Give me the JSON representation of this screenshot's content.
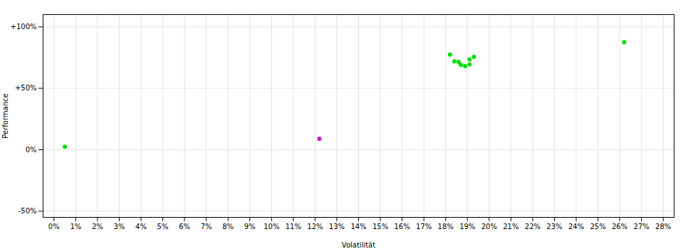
{
  "chart_data": {
    "type": "scatter",
    "xlabel": "Volatilität",
    "ylabel": "Performance",
    "xlim": [
      -0.005,
      0.285
    ],
    "ylim": [
      -0.55,
      1.1
    ],
    "xticks": [
      {
        "value": 0,
        "label": "0%"
      },
      {
        "value": 0.01,
        "label": "1%"
      },
      {
        "value": 0.02,
        "label": "2%"
      },
      {
        "value": 0.03,
        "label": "3%"
      },
      {
        "value": 0.04,
        "label": "4%"
      },
      {
        "value": 0.05,
        "label": "5%"
      },
      {
        "value": 0.06,
        "label": "6%"
      },
      {
        "value": 0.07,
        "label": "7%"
      },
      {
        "value": 0.08,
        "label": "8%"
      },
      {
        "value": 0.09,
        "label": "9%"
      },
      {
        "value": 0.1,
        "label": "10%"
      },
      {
        "value": 0.11,
        "label": "11%"
      },
      {
        "value": 0.12,
        "label": "12%"
      },
      {
        "value": 0.13,
        "label": "13%"
      },
      {
        "value": 0.14,
        "label": "14%"
      },
      {
        "value": 0.15,
        "label": "15%"
      },
      {
        "value": 0.16,
        "label": "16%"
      },
      {
        "value": 0.17,
        "label": "17%"
      },
      {
        "value": 0.18,
        "label": "18%"
      },
      {
        "value": 0.19,
        "label": "19%"
      },
      {
        "value": 0.2,
        "label": "20%"
      },
      {
        "value": 0.21,
        "label": "21%"
      },
      {
        "value": 0.22,
        "label": "22%"
      },
      {
        "value": 0.23,
        "label": "23%"
      },
      {
        "value": 0.24,
        "label": "24%"
      },
      {
        "value": 0.25,
        "label": "25%"
      },
      {
        "value": 0.26,
        "label": "26%"
      },
      {
        "value": 0.27,
        "label": "27%"
      },
      {
        "value": 0.28,
        "label": "28%"
      }
    ],
    "yticks": [
      {
        "value": -0.5,
        "label": "-50%"
      },
      {
        "value": 0,
        "label": "0%"
      },
      {
        "value": 0.5,
        "label": "+50%"
      },
      {
        "value": 1,
        "label": "+100%"
      }
    ],
    "grid": true,
    "series": [
      {
        "color": "#00dd00",
        "x": [
          0.005,
          0.182,
          0.184,
          0.186,
          0.187,
          0.189,
          0.191,
          0.191,
          0.193,
          0.262
        ],
        "values": [
          0.025,
          0.775,
          0.72,
          0.715,
          0.69,
          0.68,
          0.695,
          0.735,
          0.755,
          0.875
        ]
      },
      {
        "color": "#cc00cc",
        "x": [
          0.122
        ],
        "values": [
          0.09
        ]
      }
    ]
  }
}
